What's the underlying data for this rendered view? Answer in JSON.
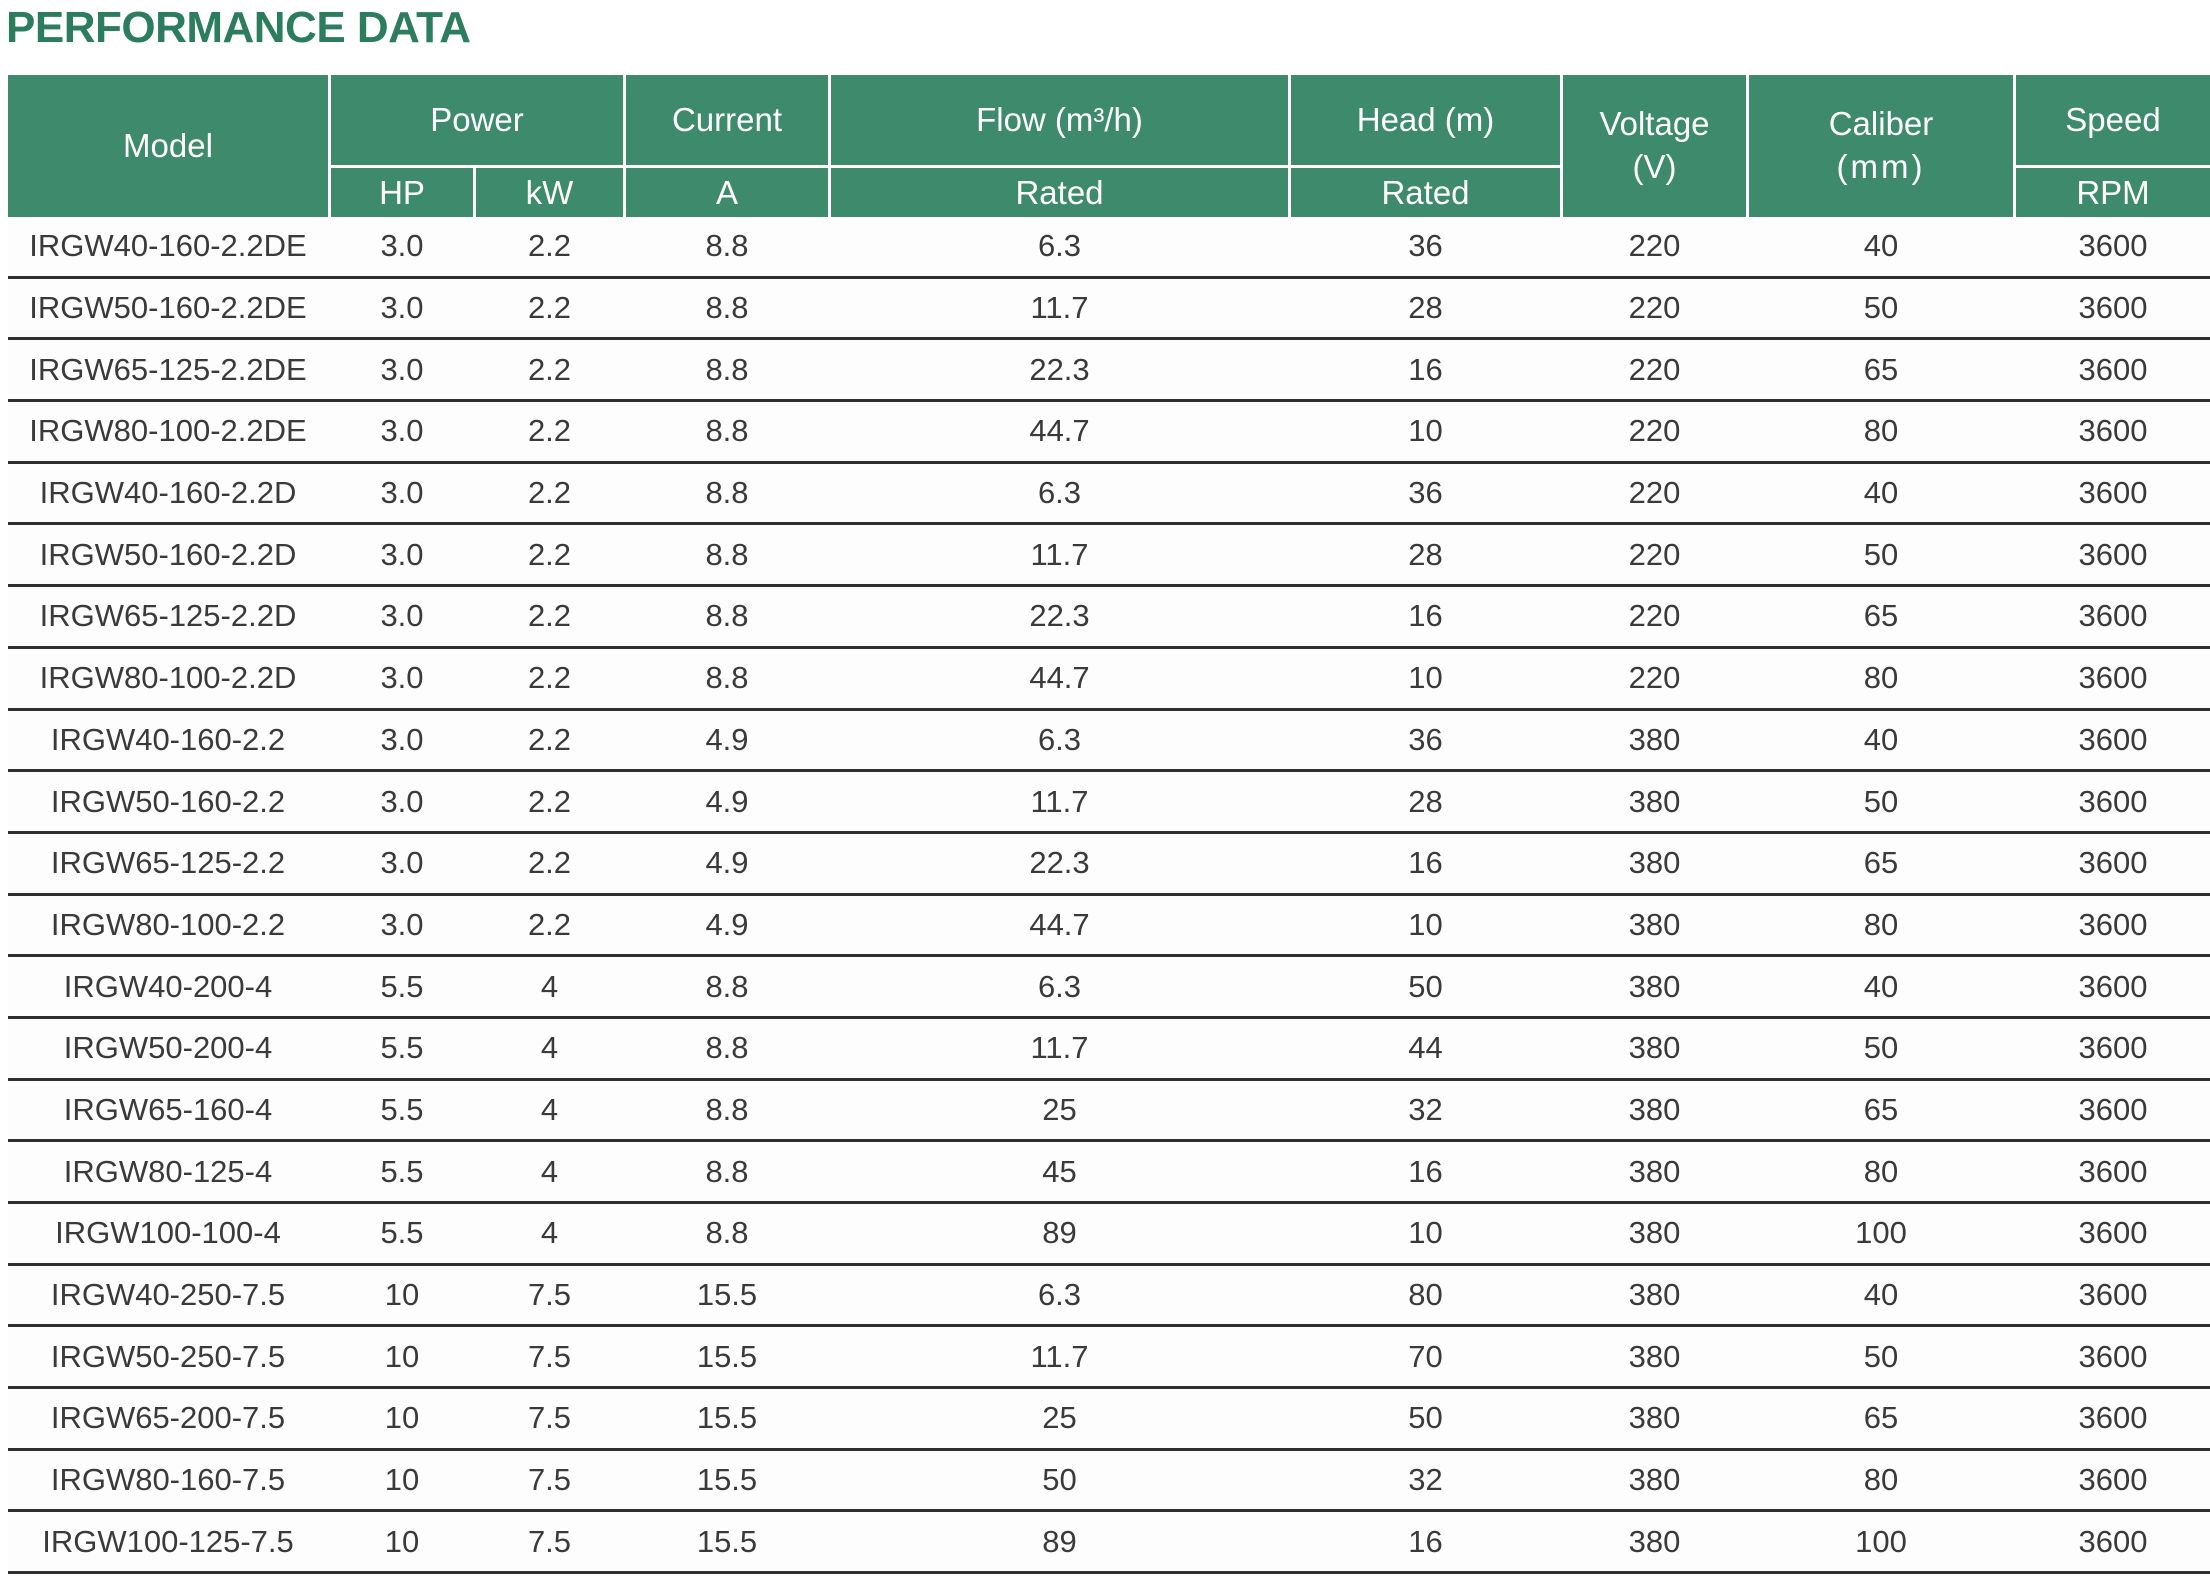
{
  "title": "PERFORMANCE DATA",
  "colors": {
    "header_bg": "#3d8a6d",
    "header_text": "#ffffff",
    "title_text": "#2b7d5e",
    "body_text": "#3a3a3a",
    "row_divider": "#2f2f2f"
  },
  "table": {
    "header": {
      "model": "Model",
      "power": "Power",
      "hp": "HP",
      "kw": "kW",
      "current": "Current",
      "current_unit": "A",
      "flow": "Flow (m³/h)",
      "flow_sub": "Rated",
      "head": "Head (m)",
      "head_sub": "Rated",
      "voltage_line1": "Voltage",
      "voltage_line2": "(V)",
      "caliber_line1": "Caliber",
      "caliber_line2": "(mm)",
      "speed": "Speed",
      "speed_sub": "RPM"
    },
    "rows": [
      {
        "model": "IRGW40-160-2.2DE",
        "hp": "3.0",
        "kw": "2.2",
        "a": "8.8",
        "flow": "6.3",
        "head": "36",
        "voltage": "220",
        "caliber": "40",
        "speed": "3600"
      },
      {
        "model": "IRGW50-160-2.2DE",
        "hp": "3.0",
        "kw": "2.2",
        "a": "8.8",
        "flow": "11.7",
        "head": "28",
        "voltage": "220",
        "caliber": "50",
        "speed": "3600"
      },
      {
        "model": "IRGW65-125-2.2DE",
        "hp": "3.0",
        "kw": "2.2",
        "a": "8.8",
        "flow": "22.3",
        "head": "16",
        "voltage": "220",
        "caliber": "65",
        "speed": "3600"
      },
      {
        "model": "IRGW80-100-2.2DE",
        "hp": "3.0",
        "kw": "2.2",
        "a": "8.8",
        "flow": "44.7",
        "head": "10",
        "voltage": "220",
        "caliber": "80",
        "speed": "3600"
      },
      {
        "model": "IRGW40-160-2.2D",
        "hp": "3.0",
        "kw": "2.2",
        "a": "8.8",
        "flow": "6.3",
        "head": "36",
        "voltage": "220",
        "caliber": "40",
        "speed": "3600"
      },
      {
        "model": "IRGW50-160-2.2D",
        "hp": "3.0",
        "kw": "2.2",
        "a": "8.8",
        "flow": "11.7",
        "head": "28",
        "voltage": "220",
        "caliber": "50",
        "speed": "3600"
      },
      {
        "model": "IRGW65-125-2.2D",
        "hp": "3.0",
        "kw": "2.2",
        "a": "8.8",
        "flow": "22.3",
        "head": "16",
        "voltage": "220",
        "caliber": "65",
        "speed": "3600"
      },
      {
        "model": "IRGW80-100-2.2D",
        "hp": "3.0",
        "kw": "2.2",
        "a": "8.8",
        "flow": "44.7",
        "head": "10",
        "voltage": "220",
        "caliber": "80",
        "speed": "3600"
      },
      {
        "model": "IRGW40-160-2.2",
        "hp": "3.0",
        "kw": "2.2",
        "a": "4.9",
        "flow": "6.3",
        "head": "36",
        "voltage": "380",
        "caliber": "40",
        "speed": "3600"
      },
      {
        "model": "IRGW50-160-2.2",
        "hp": "3.0",
        "kw": "2.2",
        "a": "4.9",
        "flow": "11.7",
        "head": "28",
        "voltage": "380",
        "caliber": "50",
        "speed": "3600"
      },
      {
        "model": "IRGW65-125-2.2",
        "hp": "3.0",
        "kw": "2.2",
        "a": "4.9",
        "flow": "22.3",
        "head": "16",
        "voltage": "380",
        "caliber": "65",
        "speed": "3600"
      },
      {
        "model": "IRGW80-100-2.2",
        "hp": "3.0",
        "kw": "2.2",
        "a": "4.9",
        "flow": "44.7",
        "head": "10",
        "voltage": "380",
        "caliber": "80",
        "speed": "3600"
      },
      {
        "model": "IRGW40-200-4",
        "hp": "5.5",
        "kw": "4",
        "a": "8.8",
        "flow": "6.3",
        "head": "50",
        "voltage": "380",
        "caliber": "40",
        "speed": "3600"
      },
      {
        "model": "IRGW50-200-4",
        "hp": "5.5",
        "kw": "4",
        "a": "8.8",
        "flow": "11.7",
        "head": "44",
        "voltage": "380",
        "caliber": "50",
        "speed": "3600"
      },
      {
        "model": "IRGW65-160-4",
        "hp": "5.5",
        "kw": "4",
        "a": "8.8",
        "flow": "25",
        "head": "32",
        "voltage": "380",
        "caliber": "65",
        "speed": "3600"
      },
      {
        "model": "IRGW80-125-4",
        "hp": "5.5",
        "kw": "4",
        "a": "8.8",
        "flow": "45",
        "head": "16",
        "voltage": "380",
        "caliber": "80",
        "speed": "3600"
      },
      {
        "model": "IRGW100-100-4",
        "hp": "5.5",
        "kw": "4",
        "a": "8.8",
        "flow": "89",
        "head": "10",
        "voltage": "380",
        "caliber": "100",
        "speed": "3600"
      },
      {
        "model": "IRGW40-250-7.5",
        "hp": "10",
        "kw": "7.5",
        "a": "15.5",
        "flow": "6.3",
        "head": "80",
        "voltage": "380",
        "caliber": "40",
        "speed": "3600"
      },
      {
        "model": "IRGW50-250-7.5",
        "hp": "10",
        "kw": "7.5",
        "a": "15.5",
        "flow": "11.7",
        "head": "70",
        "voltage": "380",
        "caliber": "50",
        "speed": "3600"
      },
      {
        "model": "IRGW65-200-7.5",
        "hp": "10",
        "kw": "7.5",
        "a": "15.5",
        "flow": "25",
        "head": "50",
        "voltage": "380",
        "caliber": "65",
        "speed": "3600"
      },
      {
        "model": "IRGW80-160-7.5",
        "hp": "10",
        "kw": "7.5",
        "a": "15.5",
        "flow": "50",
        "head": "32",
        "voltage": "380",
        "caliber": "80",
        "speed": "3600"
      },
      {
        "model": "IRGW100-125-7.5",
        "hp": "10",
        "kw": "7.5",
        "a": "15.5",
        "flow": "89",
        "head": "16",
        "voltage": "380",
        "caliber": "100",
        "speed": "3600"
      }
    ]
  }
}
